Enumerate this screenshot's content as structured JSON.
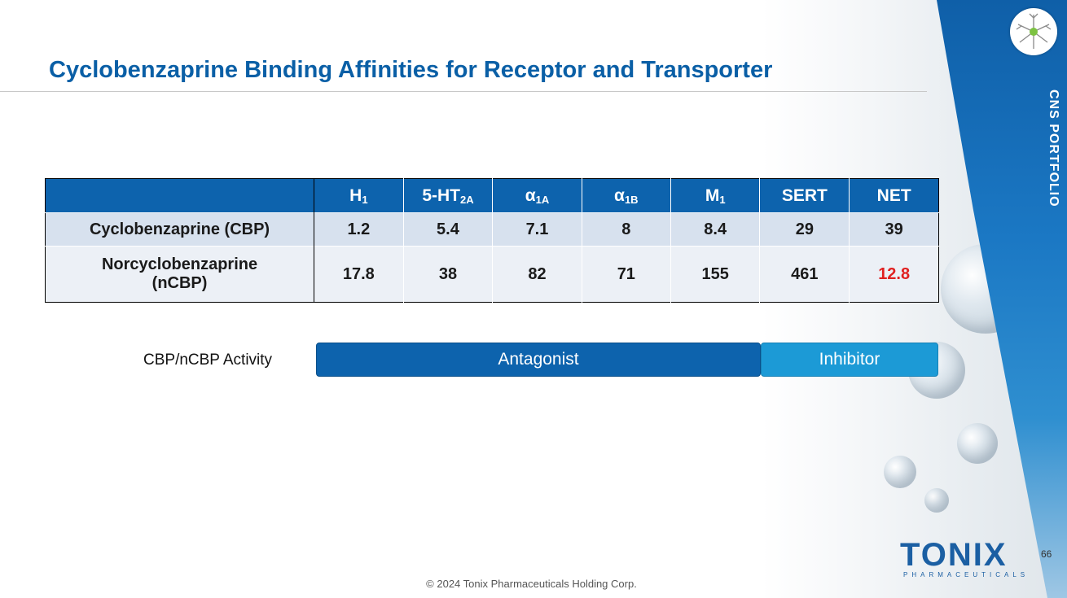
{
  "slide": {
    "title": "Cyclobenzaprine Binding Affinities for Receptor and Transporter",
    "side_label": "CNS PORTFOLIO",
    "page_number": "66",
    "footer": "© 2024 Tonix Pharmaceuticals Holding Corp."
  },
  "brand": {
    "name": "TONIX",
    "subtitle": "PHARMACEUTICALS",
    "accent_color": "#0d63ad",
    "secondary_color": "#1c9ad6",
    "highlight_color": "#e02020"
  },
  "table": {
    "headers": [
      {
        "base": "H",
        "sub": "1"
      },
      {
        "base": "5-HT",
        "sub": "2A"
      },
      {
        "base": "α",
        "sub": "1A"
      },
      {
        "base": "α",
        "sub": "1B"
      },
      {
        "base": "M",
        "sub": "1"
      },
      {
        "base": "SERT",
        "sub": ""
      },
      {
        "base": "NET",
        "sub": ""
      }
    ],
    "rows": [
      {
        "label": "Cyclobenzaprine (CBP)",
        "values": [
          "1.2",
          "5.4",
          "7.1",
          "8",
          "8.4",
          "29",
          "39"
        ]
      },
      {
        "label_line1": "Norcyclobenzaprine",
        "label_line2": "(nCBP)",
        "values": [
          "17.8",
          "38",
          "82",
          "71",
          "155",
          "461",
          "12.8"
        ]
      }
    ]
  },
  "activity": {
    "label": "CBP/nCBP Activity",
    "antagonist": "Antagonist",
    "inhibitor": "Inhibitor"
  }
}
